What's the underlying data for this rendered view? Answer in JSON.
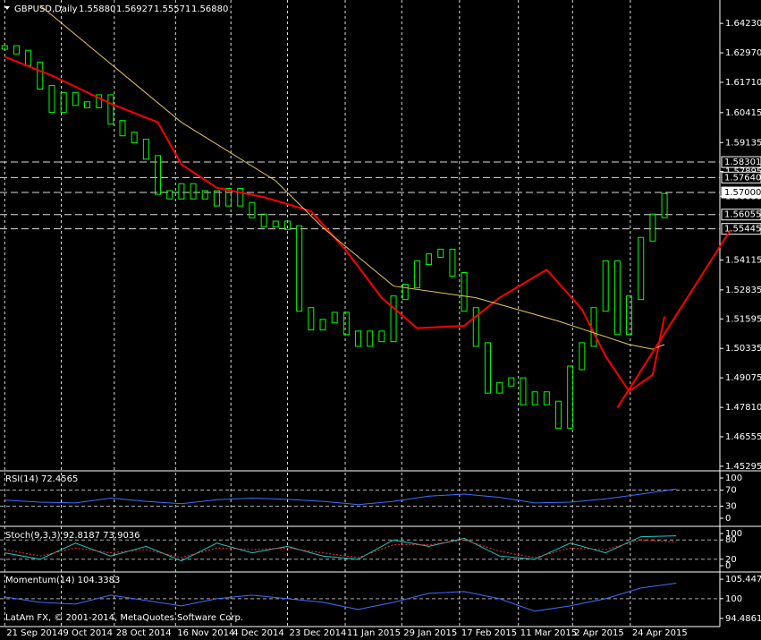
{
  "header": {
    "symbol": "GBPUSD,Daily",
    "open": "1.55880",
    "high": "1.56927",
    "low": "1.55571",
    "close": "1.56880"
  },
  "footer": "LatAm FX, © 2001-2014, MetaQuotes Software Corp.",
  "chart_data": [
    {
      "type": "price",
      "xlim": [
        -0.4,
        60.7
      ],
      "ylim": [
        1.451,
        1.6523
      ],
      "yticks": [
        {
          "value": 1.6423,
          "label": "1.64230"
        },
        {
          "value": 1.6297,
          "label": "1.62970"
        },
        {
          "value": 1.6171,
          "label": "1.61710"
        },
        1.60415,
        1.59135,
        1.57895,
        1.56835,
        1.54115,
        1.52835,
        1.51595,
        1.50335,
        1.49075,
        {
          "value": 1.4781,
          "label": "1.47810"
        },
        1.46555,
        1.45295
      ],
      "xticks": [
        {
          "value": 0,
          "label": "21 Sep 2014"
        },
        {
          "value": 4.8,
          "label": "9 Oct 2014"
        },
        {
          "value": 9.3,
          "label": "28 Oct 2014"
        },
        {
          "value": 14.5,
          "label": "16 Nov 2014"
        },
        {
          "value": 19.2,
          "label": "4 Dec 2014"
        },
        {
          "value": 24,
          "label": "23 Dec 2014"
        },
        {
          "value": 28.9,
          "label": "11 Jan 2015"
        },
        {
          "value": 33.7,
          "label": "29 Jan 2015"
        },
        {
          "value": 38.6,
          "label": "17 Feb 2015"
        },
        {
          "value": 43.6,
          "label": "11 Mar 2015"
        },
        {
          "value": 48.2,
          "label": "2 Apr 2015"
        },
        {
          "value": 53.1,
          "label": "24 Apr 2015"
        }
      ],
      "levels": [
        1.58301,
        {
          "value": 1.5764,
          "label": "1.57640"
        },
        {
          "value": 1.57,
          "label": "1.57000"
        },
        1.56055,
        1.55445
      ],
      "color": "#00ff00",
      "values": [
        1.632,
        1.63,
        1.625,
        1.615,
        1.605,
        1.612,
        1.608,
        1.607,
        1.611,
        1.6,
        1.595,
        1.592,
        1.585,
        1.57,
        1.568,
        1.573,
        1.568,
        1.57,
        1.565,
        1.571,
        1.565,
        1.56,
        1.556,
        1.557,
        1.555,
        1.52,
        1.512,
        1.515,
        1.518,
        1.51,
        1.505,
        1.51,
        1.507,
        1.525,
        1.53,
        1.54,
        1.543,
        1.545,
        1.535,
        1.52,
        1.505,
        1.485,
        1.488,
        1.49,
        1.48,
        1.484,
        1.48,
        1.47,
        1.495,
        1.505,
        1.52,
        1.54,
        1.51,
        1.525,
        1.55,
        1.56,
        1.5688
      ],
      "lines": [
        {
          "color": "#ff0000",
          "x": [
            0,
            4,
            9,
            13,
            15,
            18,
            22,
            26,
            29,
            32,
            35,
            39,
            42,
            46,
            49,
            51,
            53,
            55,
            56
          ],
          "values": [
            1.628,
            1.62,
            1.608,
            1.6,
            1.582,
            1.572,
            1.568,
            1.562,
            1.545,
            1.525,
            1.512,
            1.513,
            1.525,
            1.537,
            1.52,
            1.5,
            1.485,
            1.492,
            1.517
          ]
        },
        {
          "color": "#e8c860",
          "x": [
            3,
            15,
            23,
            27,
            33,
            40,
            47,
            53,
            55,
            56
          ],
          "values": [
            1.65,
            1.6,
            1.575,
            1.555,
            1.53,
            1.525,
            1.515,
            1.505,
            1.503,
            1.505
          ]
        },
        {
          "color": "#ff0000",
          "x": [
            52,
            61.6
          ],
          "values": [
            1.478,
            1.554
          ]
        }
      ]
    },
    {
      "type": "line",
      "title": "RSI(14) 72.4565",
      "ylim": [
        -20,
        115.6
      ],
      "yticks": [
        100,
        70,
        30,
        0
      ],
      "color": "#3f6fff",
      "x": [
        0,
        3,
        6,
        9,
        12,
        15,
        18,
        21,
        24,
        27,
        30,
        33,
        36,
        39,
        42,
        45,
        48,
        51,
        54,
        57
      ],
      "values": [
        45,
        40,
        38,
        50,
        42,
        36,
        46,
        50,
        47,
        42,
        34,
        42,
        55,
        60,
        52,
        38,
        40,
        48,
        60,
        72.4565
      ]
    },
    {
      "type": "line",
      "title": "Stoch(9,3,3) 92.8187 73.9036",
      "ylim": [
        -16.7,
        116.7
      ],
      "yticks": [
        100,
        80,
        20,
        0
      ],
      "x": [
        0,
        3,
        6,
        9,
        12,
        15,
        18,
        21,
        24,
        27,
        30,
        33,
        36,
        39,
        42,
        45,
        48,
        51,
        54,
        57
      ],
      "series": [
        {
          "color": "#20c8c8",
          "values": [
            40,
            20,
            70,
            30,
            60,
            15,
            70,
            40,
            60,
            30,
            20,
            80,
            60,
            85,
            30,
            20,
            70,
            40,
            90,
            92.8187
          ]
        },
        {
          "color": "#ff3030",
          "values": [
            50,
            30,
            55,
            40,
            50,
            25,
            55,
            50,
            55,
            40,
            25,
            65,
            65,
            80,
            45,
            25,
            55,
            50,
            80,
            73.9036
          ]
        }
      ]
    },
    {
      "type": "line",
      "title": "Momentum(14) 104.3383",
      "ylim": [
        92.19,
        107.23
      ],
      "yticks": [
        105.4475,
        100,
        94.4861
      ],
      "color": "#3f6fff",
      "x": [
        0,
        3,
        6,
        9,
        12,
        15,
        18,
        21,
        24,
        27,
        30,
        33,
        36,
        39,
        42,
        45,
        48,
        51,
        54,
        57
      ],
      "values": [
        100.5,
        99,
        98.5,
        101,
        99.5,
        98,
        100,
        101,
        100,
        99,
        97,
        99,
        101.5,
        102,
        100,
        96.5,
        98,
        100,
        103,
        104.3383
      ]
    }
  ]
}
